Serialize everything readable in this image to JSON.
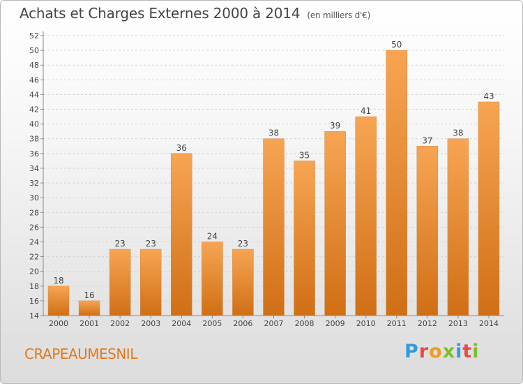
{
  "header": {
    "title": "Achats et Charges Externes 2000 à 2014",
    "subtitle": "(en milliers d'€)"
  },
  "footer": {
    "commune": "CRAPEAUMESNIL",
    "logo_letters": [
      "P",
      "r",
      "o",
      "x",
      "i",
      "t",
      "i"
    ]
  },
  "colors": {
    "bar_light": "#f7a553",
    "bar_dark": "#d06f15",
    "commune_text": "#e07a1e",
    "logo": [
      "#2f9be0",
      "#e9484a",
      "#f29a1f",
      "#7bbf2a",
      "#2f9be0",
      "#e9484a",
      "#7bbf2a"
    ]
  },
  "chart_data": {
    "type": "bar",
    "title": "Achats et Charges Externes 2000 à 2014",
    "subtitle": "(en milliers d'€)",
    "categories": [
      "2000",
      "2001",
      "2002",
      "2003",
      "2004",
      "2005",
      "2006",
      "2007",
      "2008",
      "2009",
      "2010",
      "2011",
      "2012",
      "2013",
      "2014"
    ],
    "values": [
      18,
      16,
      23,
      23,
      36,
      24,
      23,
      38,
      35,
      39,
      41,
      50,
      37,
      38,
      43
    ],
    "ylim": [
      14,
      52
    ],
    "yticks": [
      14,
      16,
      18,
      20,
      22,
      24,
      26,
      28,
      30,
      32,
      34,
      36,
      38,
      40,
      42,
      44,
      46,
      48,
      50,
      52
    ],
    "grid": true,
    "data_labels": true
  }
}
